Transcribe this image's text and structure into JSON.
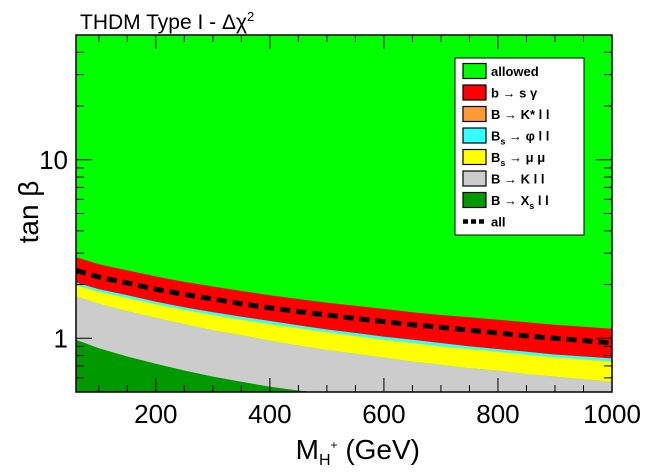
{
  "chart_data": {
    "type": "area",
    "title": "THDM Type I - Δχ",
    "title_superscript": "2",
    "xlabel": "M",
    "xlabel_sub": "H",
    "xlabel_sup": "+",
    "xlabel_unit": "(GeV)",
    "ylabel": "tan β",
    "xlim": [
      60,
      1000
    ],
    "ylim": [
      0.5,
      50
    ],
    "yscale": "log",
    "x_ticks": [
      200,
      400,
      600,
      800,
      1000
    ],
    "x_tick_labels": [
      "200",
      "400",
      "600",
      "800",
      "1000"
    ],
    "y_ticks": [
      1,
      10
    ],
    "y_tick_labels": [
      "1",
      "10"
    ],
    "legend_position": "top-right",
    "colors": {
      "allowed": "#00ff00",
      "bsg": "#ff0000",
      "bkstar": "#ff9933",
      "bsphi": "#33ffff",
      "bsmumu": "#ffff00",
      "bkll": "#cccccc",
      "bxsll": "#009900",
      "all": "#000000"
    },
    "legend": [
      {
        "key": "allowed",
        "label": "allowed",
        "color": "#00ff00",
        "style": "box"
      },
      {
        "key": "bsg",
        "label": "b → s γ",
        "color": "#ff0000",
        "style": "box"
      },
      {
        "key": "bkstar",
        "label": "B → K* l l",
        "color": "#ff9933",
        "style": "box"
      },
      {
        "key": "bsphi",
        "label": "B",
        "sub": "s",
        "label2": " → φ l l",
        "color": "#33ffff",
        "style": "box"
      },
      {
        "key": "bsmumu",
        "label": "B",
        "sub": "s",
        "label2": " → μ μ",
        "color": "#ffff00",
        "style": "box"
      },
      {
        "key": "bkll",
        "label": "B → K l l",
        "color": "#cccccc",
        "style": "box"
      },
      {
        "key": "bxsll",
        "label": "B → X",
        "sub": "s",
        "label2": " l l",
        "color": "#009900",
        "style": "box"
      },
      {
        "key": "all",
        "label": "all",
        "color": "#000000",
        "style": "dashed"
      }
    ],
    "x": [
      60,
      100,
      150,
      200,
      250,
      300,
      350,
      400,
      450,
      500,
      550,
      600,
      650,
      700,
      750,
      800,
      850,
      900,
      950,
      1000
    ],
    "boundaries": {
      "bsg_upper": [
        2.85,
        2.6,
        2.4,
        2.22,
        2.07,
        1.95,
        1.84,
        1.74,
        1.66,
        1.58,
        1.52,
        1.46,
        1.4,
        1.35,
        1.31,
        1.27,
        1.23,
        1.19,
        1.16,
        1.13
      ],
      "all_line": [
        2.4,
        2.2,
        2.04,
        1.88,
        1.76,
        1.66,
        1.56,
        1.48,
        1.41,
        1.35,
        1.29,
        1.24,
        1.19,
        1.15,
        1.11,
        1.07,
        1.03,
        1.0,
        0.97,
        0.94
      ],
      "bsg_lower": [
        2.05,
        1.88,
        1.74,
        1.6,
        1.49,
        1.4,
        1.32,
        1.25,
        1.18,
        1.12,
        1.07,
        1.02,
        0.98,
        0.94,
        0.9,
        0.87,
        0.84,
        0.81,
        0.79,
        0.77
      ],
      "bsphi_lower": [
        1.98,
        1.82,
        1.68,
        1.55,
        1.44,
        1.35,
        1.27,
        1.2,
        1.14,
        1.08,
        1.03,
        0.98,
        0.94,
        0.9,
        0.87,
        0.84,
        0.81,
        0.78,
        0.76,
        0.74
      ],
      "bsmumu_lower": [
        1.72,
        1.56,
        1.42,
        1.3,
        1.2,
        1.11,
        1.04,
        0.97,
        0.91,
        0.86,
        0.82,
        0.78,
        0.74,
        0.71,
        0.68,
        0.66,
        0.63,
        0.61,
        0.59,
        0.57
      ],
      "bxsll_upper": [
        0.98,
        0.88,
        0.79,
        0.72,
        0.66,
        0.61,
        0.57,
        0.535,
        0.51,
        0.49,
        0.475,
        0.46,
        0.45,
        0.44,
        0.43,
        0.42,
        0.41,
        0.4,
        0.39,
        0.38
      ]
    }
  }
}
